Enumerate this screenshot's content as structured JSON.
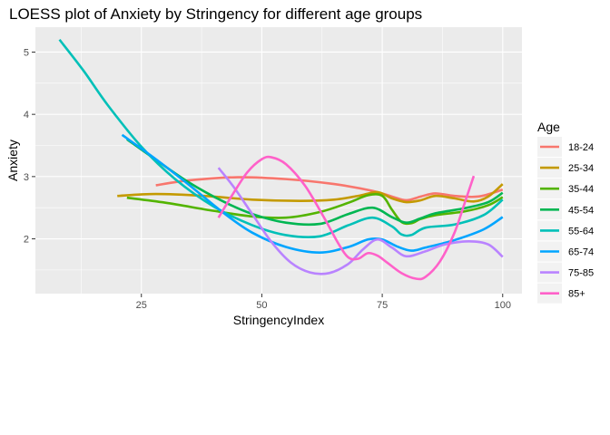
{
  "chart_data": {
    "type": "line",
    "title": "LOESS plot of Anxiety by Stringency for different age groups",
    "xlabel": "StringencyIndex",
    "ylabel": "Anxiety",
    "xlim": [
      3,
      104
    ],
    "ylim": [
      1.12,
      5.4
    ],
    "x_ticks": [
      25,
      50,
      75,
      100
    ],
    "y_ticks": [
      2,
      3,
      4,
      5
    ],
    "grid": true,
    "legend": {
      "title": "Age",
      "position": "right"
    },
    "series": [
      {
        "name": "18-24",
        "color": "#F8766D",
        "points": [
          [
            28,
            2.86
          ],
          [
            35,
            2.94
          ],
          [
            45,
            2.99
          ],
          [
            55,
            2.96
          ],
          [
            65,
            2.88
          ],
          [
            73,
            2.77
          ],
          [
            77,
            2.68
          ],
          [
            80,
            2.62
          ],
          [
            83,
            2.68
          ],
          [
            86,
            2.73
          ],
          [
            90,
            2.69
          ],
          [
            95,
            2.68
          ],
          [
            100,
            2.79
          ]
        ]
      },
      {
        "name": "25-34",
        "color": "#C49A00",
        "points": [
          [
            20,
            2.69
          ],
          [
            28,
            2.72
          ],
          [
            38,
            2.69
          ],
          [
            48,
            2.63
          ],
          [
            58,
            2.61
          ],
          [
            65,
            2.63
          ],
          [
            70,
            2.69
          ],
          [
            74,
            2.75
          ],
          [
            77,
            2.65
          ],
          [
            80,
            2.59
          ],
          [
            83,
            2.62
          ],
          [
            86,
            2.69
          ],
          [
            90,
            2.65
          ],
          [
            94,
            2.6
          ],
          [
            97,
            2.68
          ],
          [
            100,
            2.88
          ]
        ]
      },
      {
        "name": "35-44",
        "color": "#53B400",
        "points": [
          [
            22,
            2.66
          ],
          [
            30,
            2.58
          ],
          [
            40,
            2.45
          ],
          [
            48,
            2.36
          ],
          [
            55,
            2.34
          ],
          [
            62,
            2.43
          ],
          [
            68,
            2.58
          ],
          [
            72,
            2.7
          ],
          [
            75,
            2.69
          ],
          [
            77,
            2.47
          ],
          [
            79,
            2.27
          ],
          [
            81,
            2.25
          ],
          [
            83,
            2.32
          ],
          [
            86,
            2.38
          ],
          [
            92,
            2.44
          ],
          [
            97,
            2.54
          ],
          [
            100,
            2.67
          ]
        ]
      },
      {
        "name": "45-54",
        "color": "#00B652",
        "points": [
          [
            22,
            3.6
          ],
          [
            28,
            3.27
          ],
          [
            35,
            2.9
          ],
          [
            42,
            2.6
          ],
          [
            48,
            2.4
          ],
          [
            55,
            2.26
          ],
          [
            62,
            2.24
          ],
          [
            68,
            2.4
          ],
          [
            73,
            2.5
          ],
          [
            77,
            2.35
          ],
          [
            80,
            2.26
          ],
          [
            83,
            2.33
          ],
          [
            86,
            2.41
          ],
          [
            92,
            2.49
          ],
          [
            97,
            2.59
          ],
          [
            100,
            2.74
          ]
        ]
      },
      {
        "name": "55-64",
        "color": "#00C0B8",
        "points": [
          [
            8,
            5.2
          ],
          [
            13,
            4.7
          ],
          [
            18,
            4.15
          ],
          [
            25,
            3.48
          ],
          [
            32,
            2.96
          ],
          [
            40,
            2.52
          ],
          [
            48,
            2.22
          ],
          [
            55,
            2.06
          ],
          [
            62,
            2.04
          ],
          [
            68,
            2.22
          ],
          [
            73,
            2.34
          ],
          [
            77,
            2.2
          ],
          [
            79,
            2.07
          ],
          [
            81,
            2.06
          ],
          [
            84,
            2.18
          ],
          [
            90,
            2.23
          ],
          [
            96,
            2.38
          ],
          [
            100,
            2.63
          ]
        ]
      },
      {
        "name": "65-74",
        "color": "#00A5FF",
        "points": [
          [
            21,
            3.67
          ],
          [
            28,
            3.28
          ],
          [
            35,
            2.86
          ],
          [
            42,
            2.42
          ],
          [
            48,
            2.1
          ],
          [
            55,
            1.87
          ],
          [
            62,
            1.78
          ],
          [
            68,
            1.87
          ],
          [
            72,
            1.99
          ],
          [
            75,
            1.99
          ],
          [
            78,
            1.88
          ],
          [
            81,
            1.81
          ],
          [
            84,
            1.86
          ],
          [
            90,
            1.98
          ],
          [
            96,
            2.15
          ],
          [
            100,
            2.35
          ]
        ]
      },
      {
        "name": "75-85",
        "color": "#B983FF",
        "points": [
          [
            41,
            3.14
          ],
          [
            44,
            2.85
          ],
          [
            48,
            2.4
          ],
          [
            52,
            1.95
          ],
          [
            56,
            1.62
          ],
          [
            60,
            1.46
          ],
          [
            64,
            1.45
          ],
          [
            68,
            1.6
          ],
          [
            71,
            1.83
          ],
          [
            74,
            1.99
          ],
          [
            77,
            1.86
          ],
          [
            80,
            1.72
          ],
          [
            84,
            1.8
          ],
          [
            88,
            1.91
          ],
          [
            93,
            1.96
          ],
          [
            97,
            1.91
          ],
          [
            100,
            1.71
          ]
        ]
      },
      {
        "name": "85+",
        "color": "#FF61C9",
        "points": [
          [
            41,
            2.34
          ],
          [
            44,
            2.72
          ],
          [
            47,
            3.07
          ],
          [
            50,
            3.28
          ],
          [
            52,
            3.31
          ],
          [
            55,
            3.2
          ],
          [
            59,
            2.85
          ],
          [
            63,
            2.33
          ],
          [
            66,
            1.91
          ],
          [
            68,
            1.7
          ],
          [
            70,
            1.68
          ],
          [
            72,
            1.77
          ],
          [
            74,
            1.73
          ],
          [
            76,
            1.62
          ],
          [
            79,
            1.45
          ],
          [
            82,
            1.36
          ],
          [
            84,
            1.39
          ],
          [
            87,
            1.64
          ],
          [
            90,
            2.1
          ],
          [
            92,
            2.55
          ],
          [
            94,
            3.01
          ]
        ]
      }
    ]
  }
}
